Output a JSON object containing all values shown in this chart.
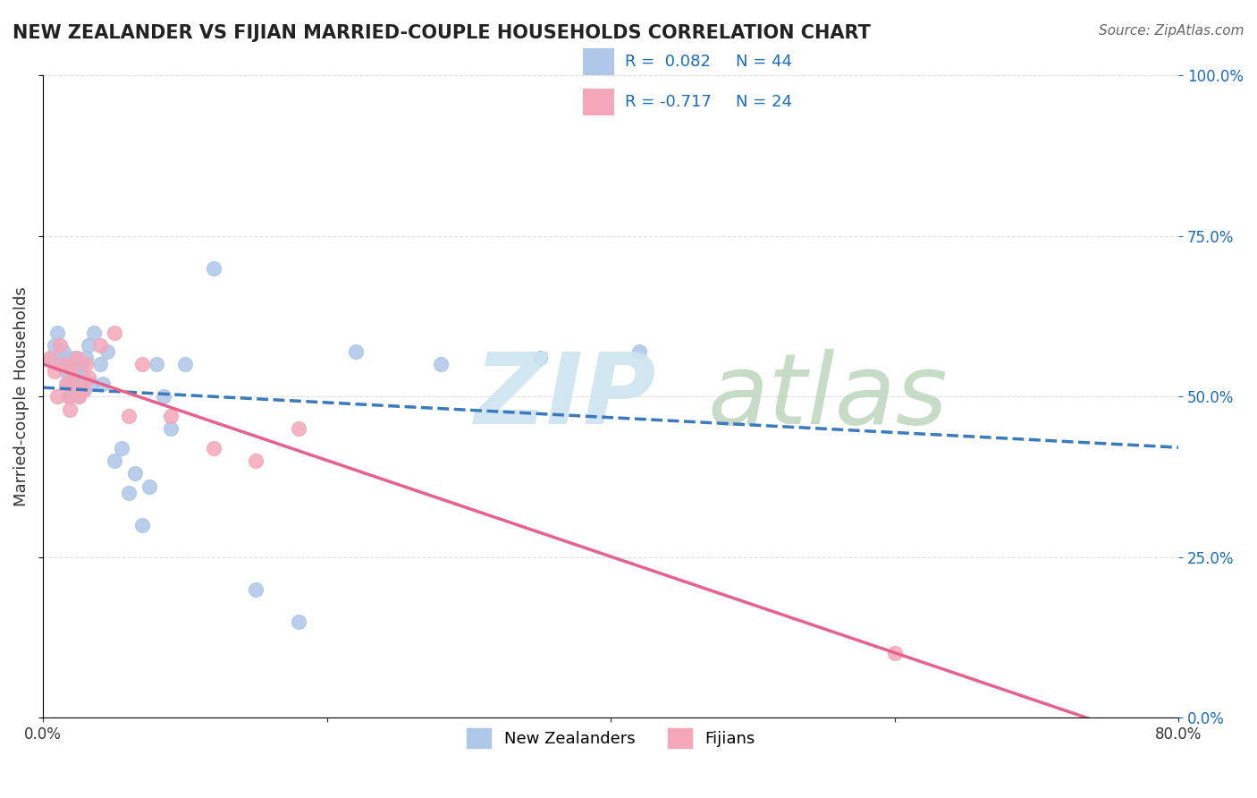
{
  "title": "NEW ZEALANDER VS FIJIAN MARRIED-COUPLE HOUSEHOLDS CORRELATION CHART",
  "source": "Source: ZipAtlas.com",
  "ylabel": "Married-couple Households",
  "right_yticks": [
    0.0,
    0.25,
    0.5,
    0.75,
    1.0
  ],
  "xlim": [
    0.0,
    0.8
  ],
  "ylim": [
    0.0,
    1.0
  ],
  "nz_R": 0.082,
  "nz_N": 44,
  "fijian_R": -0.717,
  "fijian_N": 24,
  "nz_color": "#aec6e8",
  "fijian_color": "#f4a7b9",
  "nz_line_color": "#3a7abf",
  "fijian_line_color": "#e8618c",
  "r_text_color": "#1a6bbf",
  "background_color": "#ffffff",
  "grid_color": "#dddddd",
  "watermark_zip_color": "#cce4f0",
  "watermark_atlas_color": "#b8d4b8",
  "nz_x": [
    0.005,
    0.008,
    0.01,
    0.012,
    0.014,
    0.015,
    0.016,
    0.017,
    0.018,
    0.019,
    0.02,
    0.021,
    0.022,
    0.023,
    0.024,
    0.025,
    0.026,
    0.027,
    0.028,
    0.029,
    0.03,
    0.032,
    0.034,
    0.036,
    0.04,
    0.042,
    0.045,
    0.05,
    0.055,
    0.06,
    0.065,
    0.07,
    0.075,
    0.08,
    0.085,
    0.09,
    0.1,
    0.12,
    0.15,
    0.18,
    0.22,
    0.28,
    0.35,
    0.42
  ],
  "nz_y": [
    0.56,
    0.58,
    0.6,
    0.55,
    0.57,
    0.56,
    0.54,
    0.52,
    0.5,
    0.53,
    0.51,
    0.53,
    0.56,
    0.54,
    0.52,
    0.5,
    0.54,
    0.55,
    0.53,
    0.51,
    0.56,
    0.58,
    0.52,
    0.6,
    0.55,
    0.52,
    0.57,
    0.4,
    0.42,
    0.35,
    0.38,
    0.3,
    0.36,
    0.55,
    0.5,
    0.45,
    0.55,
    0.7,
    0.2,
    0.15,
    0.57,
    0.55,
    0.56,
    0.57
  ],
  "fijian_x": [
    0.005,
    0.008,
    0.01,
    0.012,
    0.015,
    0.016,
    0.018,
    0.019,
    0.02,
    0.022,
    0.024,
    0.025,
    0.028,
    0.03,
    0.032,
    0.04,
    0.05,
    0.06,
    0.07,
    0.09,
    0.12,
    0.15,
    0.18,
    0.6
  ],
  "fijian_y": [
    0.56,
    0.54,
    0.5,
    0.58,
    0.55,
    0.52,
    0.5,
    0.48,
    0.54,
    0.52,
    0.56,
    0.5,
    0.51,
    0.55,
    0.53,
    0.58,
    0.6,
    0.47,
    0.55,
    0.47,
    0.42,
    0.4,
    0.45,
    0.1
  ]
}
